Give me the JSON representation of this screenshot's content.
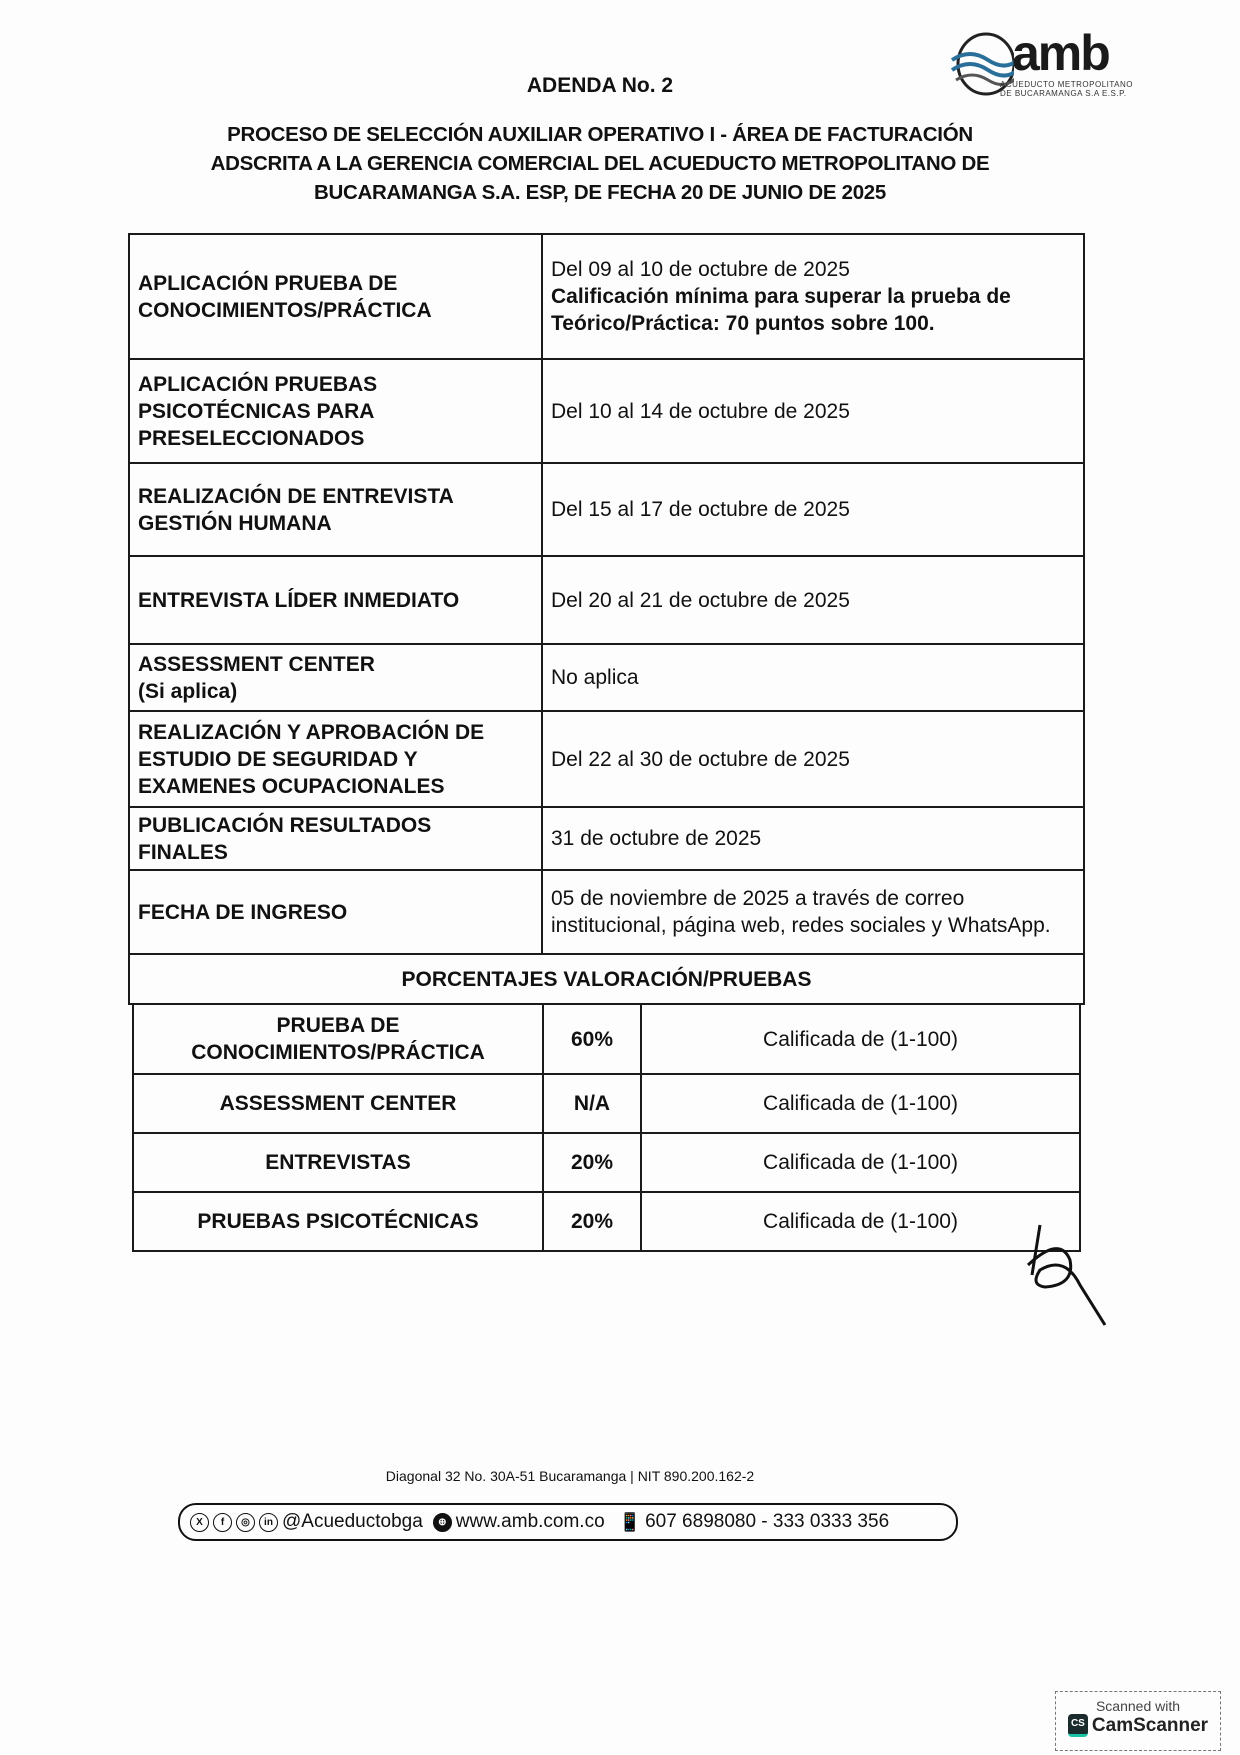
{
  "header": {
    "addendum": "ADENDA No. 2",
    "title_lines": [
      "PROCESO DE SELECCIÓN AUXILIAR OPERATIVO I - ÁREA DE FACTURACIÓN",
      "ADSCRITA A LA GERENCIA COMERCIAL DEL ACUEDUCTO METROPOLITANO DE",
      "BUCARAMANGA S.A. ESP, DE FECHA 20 DE JUNIO DE 2025"
    ],
    "logo": {
      "word": "amb",
      "sub1": "ACUEDUCTO METROPOLITANO",
      "sub2": "DE BUCARAMANGA S.A E.S.P."
    }
  },
  "schedule": [
    {
      "stage": [
        "APLICACIÓN PRUEBA DE",
        "CONOCIMIENTOS/PRÁCTICA"
      ],
      "date": "Del 09 al 10 de octubre de 2025",
      "note": "Calificación mínima para superar la prueba de Teórico/Práctica: 70 puntos sobre 100."
    },
    {
      "stage": [
        "APLICACIÓN PRUEBAS",
        "PSICOTÉCNICAS PARA",
        "PRESELECCIONADOS"
      ],
      "date": "Del 10 al 14 de octubre de 2025"
    },
    {
      "stage": [
        "REALIZACIÓN DE ENTREVISTA",
        "GESTIÓN HUMANA"
      ],
      "date": "Del 15 al 17 de octubre de 2025"
    },
    {
      "stage": [
        "ENTREVISTA LÍDER INMEDIATO"
      ],
      "date": "Del 20 al 21 de octubre de 2025"
    },
    {
      "stage": [
        "ASSESSMENT CENTER",
        "(Si aplica)"
      ],
      "date": "No aplica"
    },
    {
      "stage": [
        "REALIZACIÓN Y APROBACIÓN DE",
        "ESTUDIO DE SEGURIDAD Y",
        "EXAMENES OCUPACIONALES"
      ],
      "date": "Del 22 al 30 de octubre de 2025"
    },
    {
      "stage": [
        "PUBLICACIÓN RESULTADOS",
        "FINALES"
      ],
      "date": "31 de octubre de 2025"
    },
    {
      "stage": [
        "FECHA DE INGRESO"
      ],
      "date": "05 de noviembre de 2025 a través de correo institucional, página web, redes sociales y WhatsApp."
    }
  ],
  "percentages": {
    "heading": "PORCENTAJES VALORACIÓN/PRUEBAS",
    "rows": [
      {
        "test": "PRUEBA DE CONOCIMIENTOS/PRÁCTICA",
        "weight": "60%",
        "scale": "Calificada de (1-100)"
      },
      {
        "test": "ASSESSMENT CENTER",
        "weight": "N/A",
        "scale": "Calificada de (1-100)"
      },
      {
        "test": "ENTREVISTAS",
        "weight": "20%",
        "scale": "Calificada de (1-100)"
      },
      {
        "test": "PRUEBAS PSICOTÉCNICAS",
        "weight": "20%",
        "scale": "Calificada de (1-100)"
      }
    ]
  },
  "footer": {
    "address": "Diagonal 32 No. 30A-51 Bucaramanga | NIT 890.200.162-2",
    "social_icons": [
      "x-icon",
      "facebook-icon",
      "instagram-icon",
      "linkedin-icon"
    ],
    "handle": "@Acueductobga",
    "website": "www.amb.com.co",
    "phones": "607 6898080 - 333 0333 356"
  },
  "watermark": {
    "line1": "Scanned with",
    "brand": "CamScanner",
    "badge": "CS"
  }
}
